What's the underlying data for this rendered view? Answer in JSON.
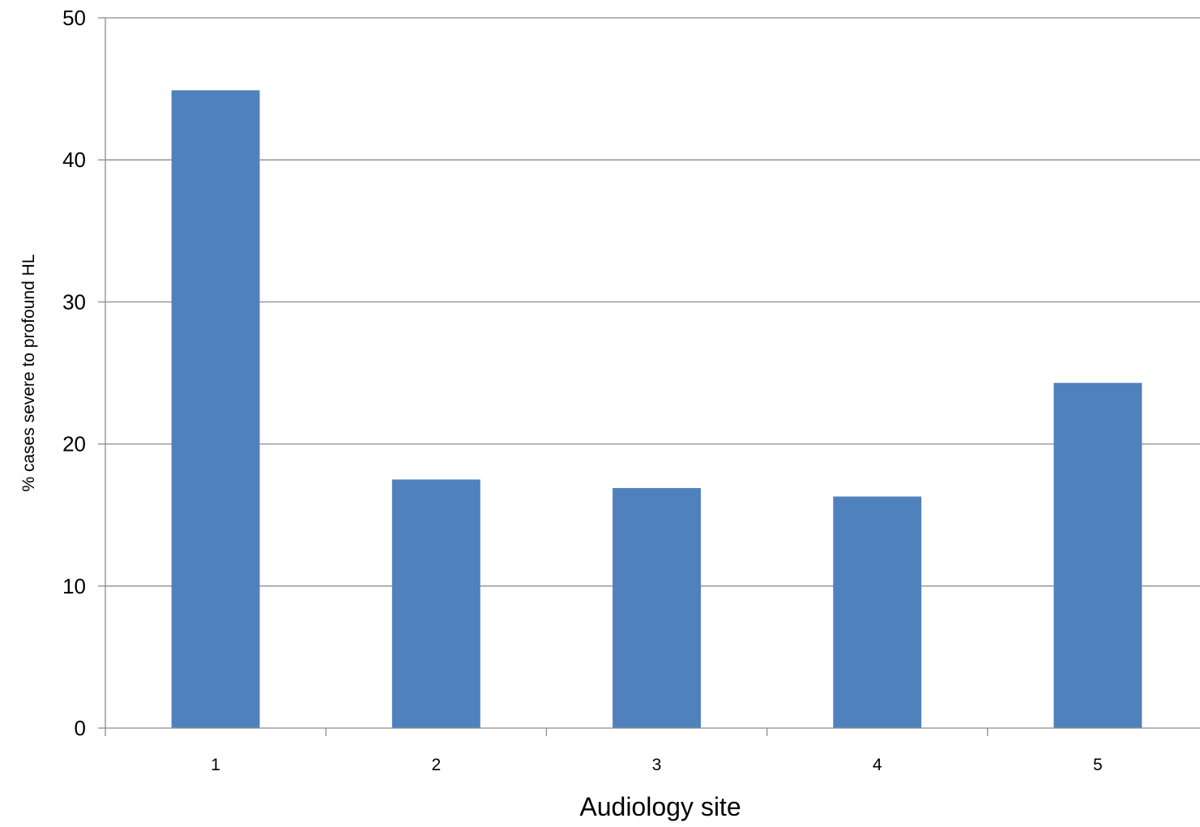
{
  "chart_data": {
    "type": "bar",
    "title": "",
    "xlabel": "Audiology site",
    "ylabel": "% cases severe to profound HL",
    "categories": [
      "1",
      "2",
      "3",
      "4",
      "5"
    ],
    "values": [
      44.9,
      17.5,
      16.9,
      16.3,
      24.3
    ],
    "ylim": [
      0,
      50
    ],
    "yticks": [
      "0",
      "10",
      "20",
      "30",
      "40",
      "50"
    ],
    "grid": true,
    "legend": "none",
    "colors": {
      "bar": "#4f81bd",
      "grid": "#8c8c8c",
      "axis": "#8c8c8c",
      "text": "#000000"
    }
  }
}
